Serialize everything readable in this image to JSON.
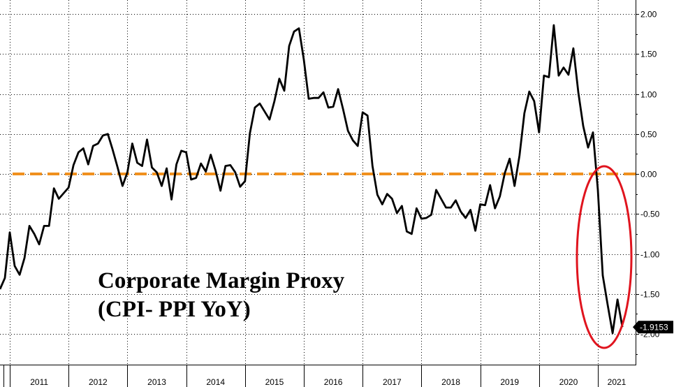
{
  "chart_data": {
    "type": "line",
    "title_lines": [
      "Corporate Margin Proxy",
      "(CPI- PPI YoY)"
    ],
    "xlabel": "",
    "ylabel": "",
    "x_start": 2010.8333,
    "x_step": 0.083333,
    "x_range": [
      2010.8333,
      2021.3333
    ],
    "ylim": [
      -2.3,
      2.1
    ],
    "y_ticks": [
      2.0,
      1.5,
      1.0,
      0.5,
      0.0,
      -0.5,
      -1.0,
      -1.5,
      -2.0
    ],
    "y_tick_labels": [
      "2.00",
      "1.50",
      "1.00",
      "0.50",
      "0.00",
      "-0.50",
      "-1.00",
      "-1.50",
      "-2.00"
    ],
    "x_year_labels": [
      "2011",
      "2012",
      "2013",
      "2014",
      "2015",
      "2016",
      "2017",
      "2018",
      "2019",
      "2020",
      "2021"
    ],
    "grid": true,
    "reference_line": {
      "value": 0.0,
      "color": "#f0901e",
      "style": "dashed"
    },
    "last_value_label": "-1.9153",
    "highlight_ellipse": {
      "color": "#e0141e",
      "around": "2020-2021 decline"
    },
    "series": [
      {
        "color": "#000000",
        "values": [
          -1.44,
          -1.3,
          -0.73,
          -1.15,
          -1.26,
          -1.05,
          -0.65,
          -0.75,
          -0.88,
          -0.65,
          -0.65,
          -0.18,
          -0.31,
          -0.24,
          -0.17,
          0.11,
          0.27,
          0.32,
          0.12,
          0.35,
          0.38,
          0.48,
          0.5,
          0.3,
          0.08,
          -0.15,
          0.02,
          0.38,
          0.14,
          0.1,
          0.43,
          0.08,
          0.02,
          -0.15,
          0.07,
          -0.32,
          0.12,
          0.29,
          0.27,
          -0.07,
          -0.05,
          0.13,
          0.03,
          0.24,
          0.04,
          -0.21,
          0.1,
          0.11,
          0.02,
          -0.16,
          -0.09,
          0.51,
          0.83,
          0.88,
          0.78,
          0.68,
          0.91,
          1.19,
          1.04,
          1.6,
          1.78,
          1.82,
          1.43,
          0.94,
          0.95,
          0.95,
          1.02,
          0.83,
          0.84,
          1.06,
          0.81,
          0.54,
          0.42,
          0.35,
          0.77,
          0.73,
          0.1,
          -0.26,
          -0.38,
          -0.25,
          -0.31,
          -0.49,
          -0.4,
          -0.72,
          -0.75,
          -0.43,
          -0.56,
          -0.55,
          -0.51,
          -0.2,
          -0.31,
          -0.42,
          -0.42,
          -0.33,
          -0.47,
          -0.55,
          -0.45,
          -0.71,
          -0.38,
          -0.39,
          -0.14,
          -0.43,
          -0.28,
          0.01,
          0.19,
          -0.15,
          0.23,
          0.76,
          1.03,
          0.91,
          0.52,
          1.23,
          1.21,
          1.86,
          1.23,
          1.33,
          1.24,
          1.57,
          1.02,
          0.6,
          0.33,
          0.52,
          -0.2,
          -1.27,
          -1.64,
          -1.99,
          -1.57,
          -1.9153
        ]
      }
    ]
  }
}
